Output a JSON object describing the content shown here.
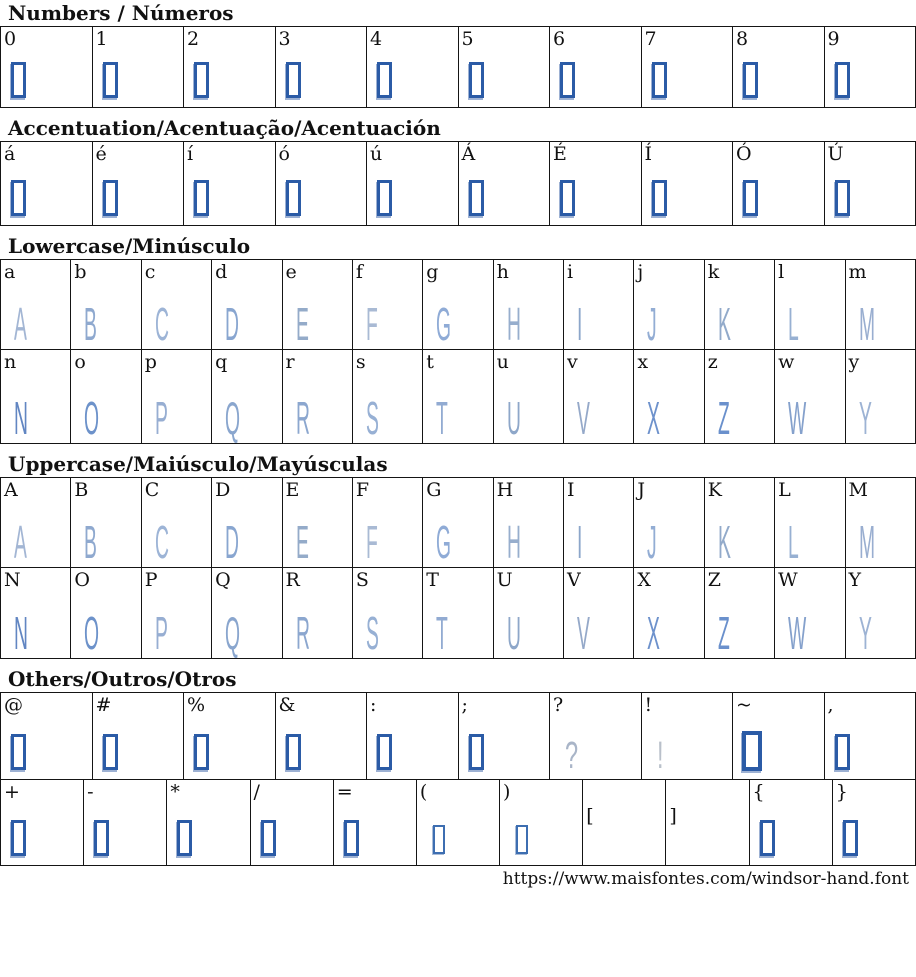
{
  "colors": {
    "notdef_border": "#2b5ba6",
    "notdef_shadow": "#9db1d3",
    "notdef_small_border": "#3d6eb1",
    "table_border": "#151515",
    "label_text": "#111111"
  },
  "footer": {
    "url": "https://www.maisfontes.com/windsor-hand.font"
  },
  "sections": [
    {
      "id": "numbers",
      "title": "Numbers / Números",
      "rows": [
        [
          {
            "label": "0",
            "type": "tofu"
          },
          {
            "label": "1",
            "type": "tofu"
          },
          {
            "label": "2",
            "type": "tofu"
          },
          {
            "label": "3",
            "type": "tofu"
          },
          {
            "label": "4",
            "type": "tofu"
          },
          {
            "label": "5",
            "type": "tofu"
          },
          {
            "label": "6",
            "type": "tofu"
          },
          {
            "label": "7",
            "type": "tofu"
          },
          {
            "label": "8",
            "type": "tofu"
          },
          {
            "label": "9",
            "type": "tofu"
          }
        ]
      ]
    },
    {
      "id": "accents",
      "title": "Accentuation/Acentuação/Acentuación",
      "rows": [
        [
          {
            "label": "á",
            "type": "tofu"
          },
          {
            "label": "é",
            "type": "tofu"
          },
          {
            "label": "í",
            "type": "tofu"
          },
          {
            "label": "ó",
            "type": "tofu"
          },
          {
            "label": "ú",
            "type": "tofu"
          },
          {
            "label": "Á",
            "type": "tofu"
          },
          {
            "label": "É",
            "type": "tofu"
          },
          {
            "label": "Í",
            "type": "tofu"
          },
          {
            "label": "Ó",
            "type": "tofu"
          },
          {
            "label": "Ú",
            "type": "tofu"
          }
        ]
      ]
    },
    {
      "id": "lowercase",
      "title": "Lowercase/Minúsculo",
      "rows": [
        [
          {
            "label": "a",
            "glyph": "A",
            "type": "letter",
            "color": "#a3b6d4"
          },
          {
            "label": "b",
            "glyph": "B",
            "type": "letter",
            "color": "#8fa9cf"
          },
          {
            "label": "c",
            "glyph": "C",
            "type": "letter",
            "color": "#9db4d6"
          },
          {
            "label": "d",
            "glyph": "D",
            "type": "letter",
            "color": "#89a6d0"
          },
          {
            "label": "e",
            "glyph": "E",
            "type": "letter",
            "color": "#94abc9"
          },
          {
            "label": "f",
            "glyph": "F",
            "type": "letter",
            "color": "#a9bad4"
          },
          {
            "label": "g",
            "glyph": "G",
            "type": "letter",
            "color": "#8fabd6"
          },
          {
            "label": "h",
            "glyph": "H",
            "type": "letter",
            "color": "#97aecd"
          },
          {
            "label": "i",
            "glyph": "I",
            "type": "letter",
            "color": "#8ca6ca"
          },
          {
            "label": "j",
            "glyph": "J",
            "type": "letter",
            "color": "#93add4"
          },
          {
            "label": "k",
            "glyph": "K",
            "type": "letter",
            "color": "#92aaca"
          },
          {
            "label": "l",
            "glyph": "L",
            "type": "letter",
            "color": "#97b0d2"
          },
          {
            "label": "m",
            "glyph": "M",
            "type": "letter",
            "color": "#99aed0"
          }
        ],
        [
          {
            "label": "n",
            "glyph": "N",
            "type": "letter",
            "color": "#6286c2"
          },
          {
            "label": "o",
            "glyph": "O",
            "type": "letter",
            "color": "#6d92ca"
          },
          {
            "label": "p",
            "glyph": "P",
            "type": "letter",
            "color": "#97aed2"
          },
          {
            "label": "q",
            "glyph": "Q",
            "type": "letter",
            "color": "#8aa6ce"
          },
          {
            "label": "r",
            "glyph": "R",
            "type": "letter",
            "color": "#8ca7cf"
          },
          {
            "label": "s",
            "glyph": "S",
            "type": "letter",
            "color": "#97b0d4"
          },
          {
            "label": "t",
            "glyph": "T",
            "type": "letter",
            "color": "#92abd2"
          },
          {
            "label": "u",
            "glyph": "U",
            "type": "letter",
            "color": "#8ea7c9"
          },
          {
            "label": "v",
            "glyph": "V",
            "type": "letter",
            "color": "#95a9c9"
          },
          {
            "label": "x",
            "glyph": "X",
            "type": "letter",
            "color": "#6e92cc"
          },
          {
            "label": "z",
            "glyph": "Z",
            "type": "letter",
            "color": "#6a90cc"
          },
          {
            "label": "w",
            "glyph": "W",
            "type": "letter",
            "color": "#85a1cc"
          },
          {
            "label": "y",
            "glyph": "Y",
            "type": "letter",
            "color": "#9db3d4"
          }
        ]
      ]
    },
    {
      "id": "uppercase",
      "title": "Uppercase/Maiúsculo/Mayúsculas",
      "rows": [
        [
          {
            "label": "A",
            "glyph": "A",
            "type": "letter",
            "color": "#a3b6d4"
          },
          {
            "label": "B",
            "glyph": "B",
            "type": "letter",
            "color": "#8fa9cf"
          },
          {
            "label": "C",
            "glyph": "C",
            "type": "letter",
            "color": "#9db4d6"
          },
          {
            "label": "D",
            "glyph": "D",
            "type": "letter",
            "color": "#89a6d0"
          },
          {
            "label": "E",
            "glyph": "E",
            "type": "letter",
            "color": "#94abc9"
          },
          {
            "label": "F",
            "glyph": "F",
            "type": "letter",
            "color": "#a9bad4"
          },
          {
            "label": "G",
            "glyph": "G",
            "type": "letter",
            "color": "#8fabd6"
          },
          {
            "label": "H",
            "glyph": "H",
            "type": "letter",
            "color": "#97aecd"
          },
          {
            "label": "I",
            "glyph": "I",
            "type": "letter",
            "color": "#8ca6ca"
          },
          {
            "label": "J",
            "glyph": "J",
            "type": "letter",
            "color": "#93add4"
          },
          {
            "label": "K",
            "glyph": "K",
            "type": "letter",
            "color": "#92aaca"
          },
          {
            "label": "L",
            "glyph": "L",
            "type": "letter",
            "color": "#97b0d2"
          },
          {
            "label": "M",
            "glyph": "M",
            "type": "letter",
            "color": "#99aed0"
          }
        ],
        [
          {
            "label": "N",
            "glyph": "N",
            "type": "letter",
            "color": "#6286c2"
          },
          {
            "label": "O",
            "glyph": "O",
            "type": "letter",
            "color": "#6d92ca"
          },
          {
            "label": "P",
            "glyph": "P",
            "type": "letter",
            "color": "#97aed2"
          },
          {
            "label": "Q",
            "glyph": "Q",
            "type": "letter",
            "color": "#8aa6ce"
          },
          {
            "label": "R",
            "glyph": "R",
            "type": "letter",
            "color": "#8ca7cf"
          },
          {
            "label": "S",
            "glyph": "S",
            "type": "letter",
            "color": "#97b0d4"
          },
          {
            "label": "T",
            "glyph": "T",
            "type": "letter",
            "color": "#92abd2"
          },
          {
            "label": "U",
            "glyph": "U",
            "type": "letter",
            "color": "#8ea7c9"
          },
          {
            "label": "V",
            "glyph": "V",
            "type": "letter",
            "color": "#95a9c9"
          },
          {
            "label": "X",
            "glyph": "X",
            "type": "letter",
            "color": "#6e92cc"
          },
          {
            "label": "Z",
            "glyph": "Z",
            "type": "letter",
            "color": "#6a90cc"
          },
          {
            "label": "W",
            "glyph": "W",
            "type": "letter",
            "color": "#85a1cc"
          },
          {
            "label": "Y",
            "glyph": "Y",
            "type": "letter",
            "color": "#9db3d4"
          }
        ]
      ]
    },
    {
      "id": "others",
      "title": "Others/Outros/Otros",
      "rows": [
        [
          {
            "label": "@",
            "type": "tofu"
          },
          {
            "label": "#",
            "type": "tofu"
          },
          {
            "label": "%",
            "type": "tofu"
          },
          {
            "label": "&",
            "type": "tofu"
          },
          {
            "label": ":",
            "type": "tofu"
          },
          {
            "label": ";",
            "type": "tofu"
          },
          {
            "label": "?",
            "glyph": "?",
            "type": "punct",
            "color": "#a9b5c8"
          },
          {
            "label": "!",
            "glyph": "!",
            "type": "punct",
            "color": "#b9c0ca"
          },
          {
            "label": "~",
            "type": "tofu-big"
          },
          {
            "label": ",",
            "type": "tofu"
          }
        ],
        [
          {
            "label": "+",
            "type": "tofu"
          },
          {
            "label": "-",
            "type": "tofu"
          },
          {
            "label": "*",
            "type": "tofu"
          },
          {
            "label": "/",
            "type": "tofu"
          },
          {
            "label": "=",
            "type": "tofu"
          },
          {
            "label": "(",
            "type": "tofu-small"
          },
          {
            "label": ")",
            "type": "tofu-small"
          },
          {
            "label": "[",
            "type": "none",
            "label_pos": "mid"
          },
          {
            "label": "]",
            "type": "none",
            "label_pos": "mid"
          },
          {
            "label": "{",
            "type": "tofu"
          },
          {
            "label": "}",
            "type": "tofu"
          }
        ]
      ]
    }
  ]
}
